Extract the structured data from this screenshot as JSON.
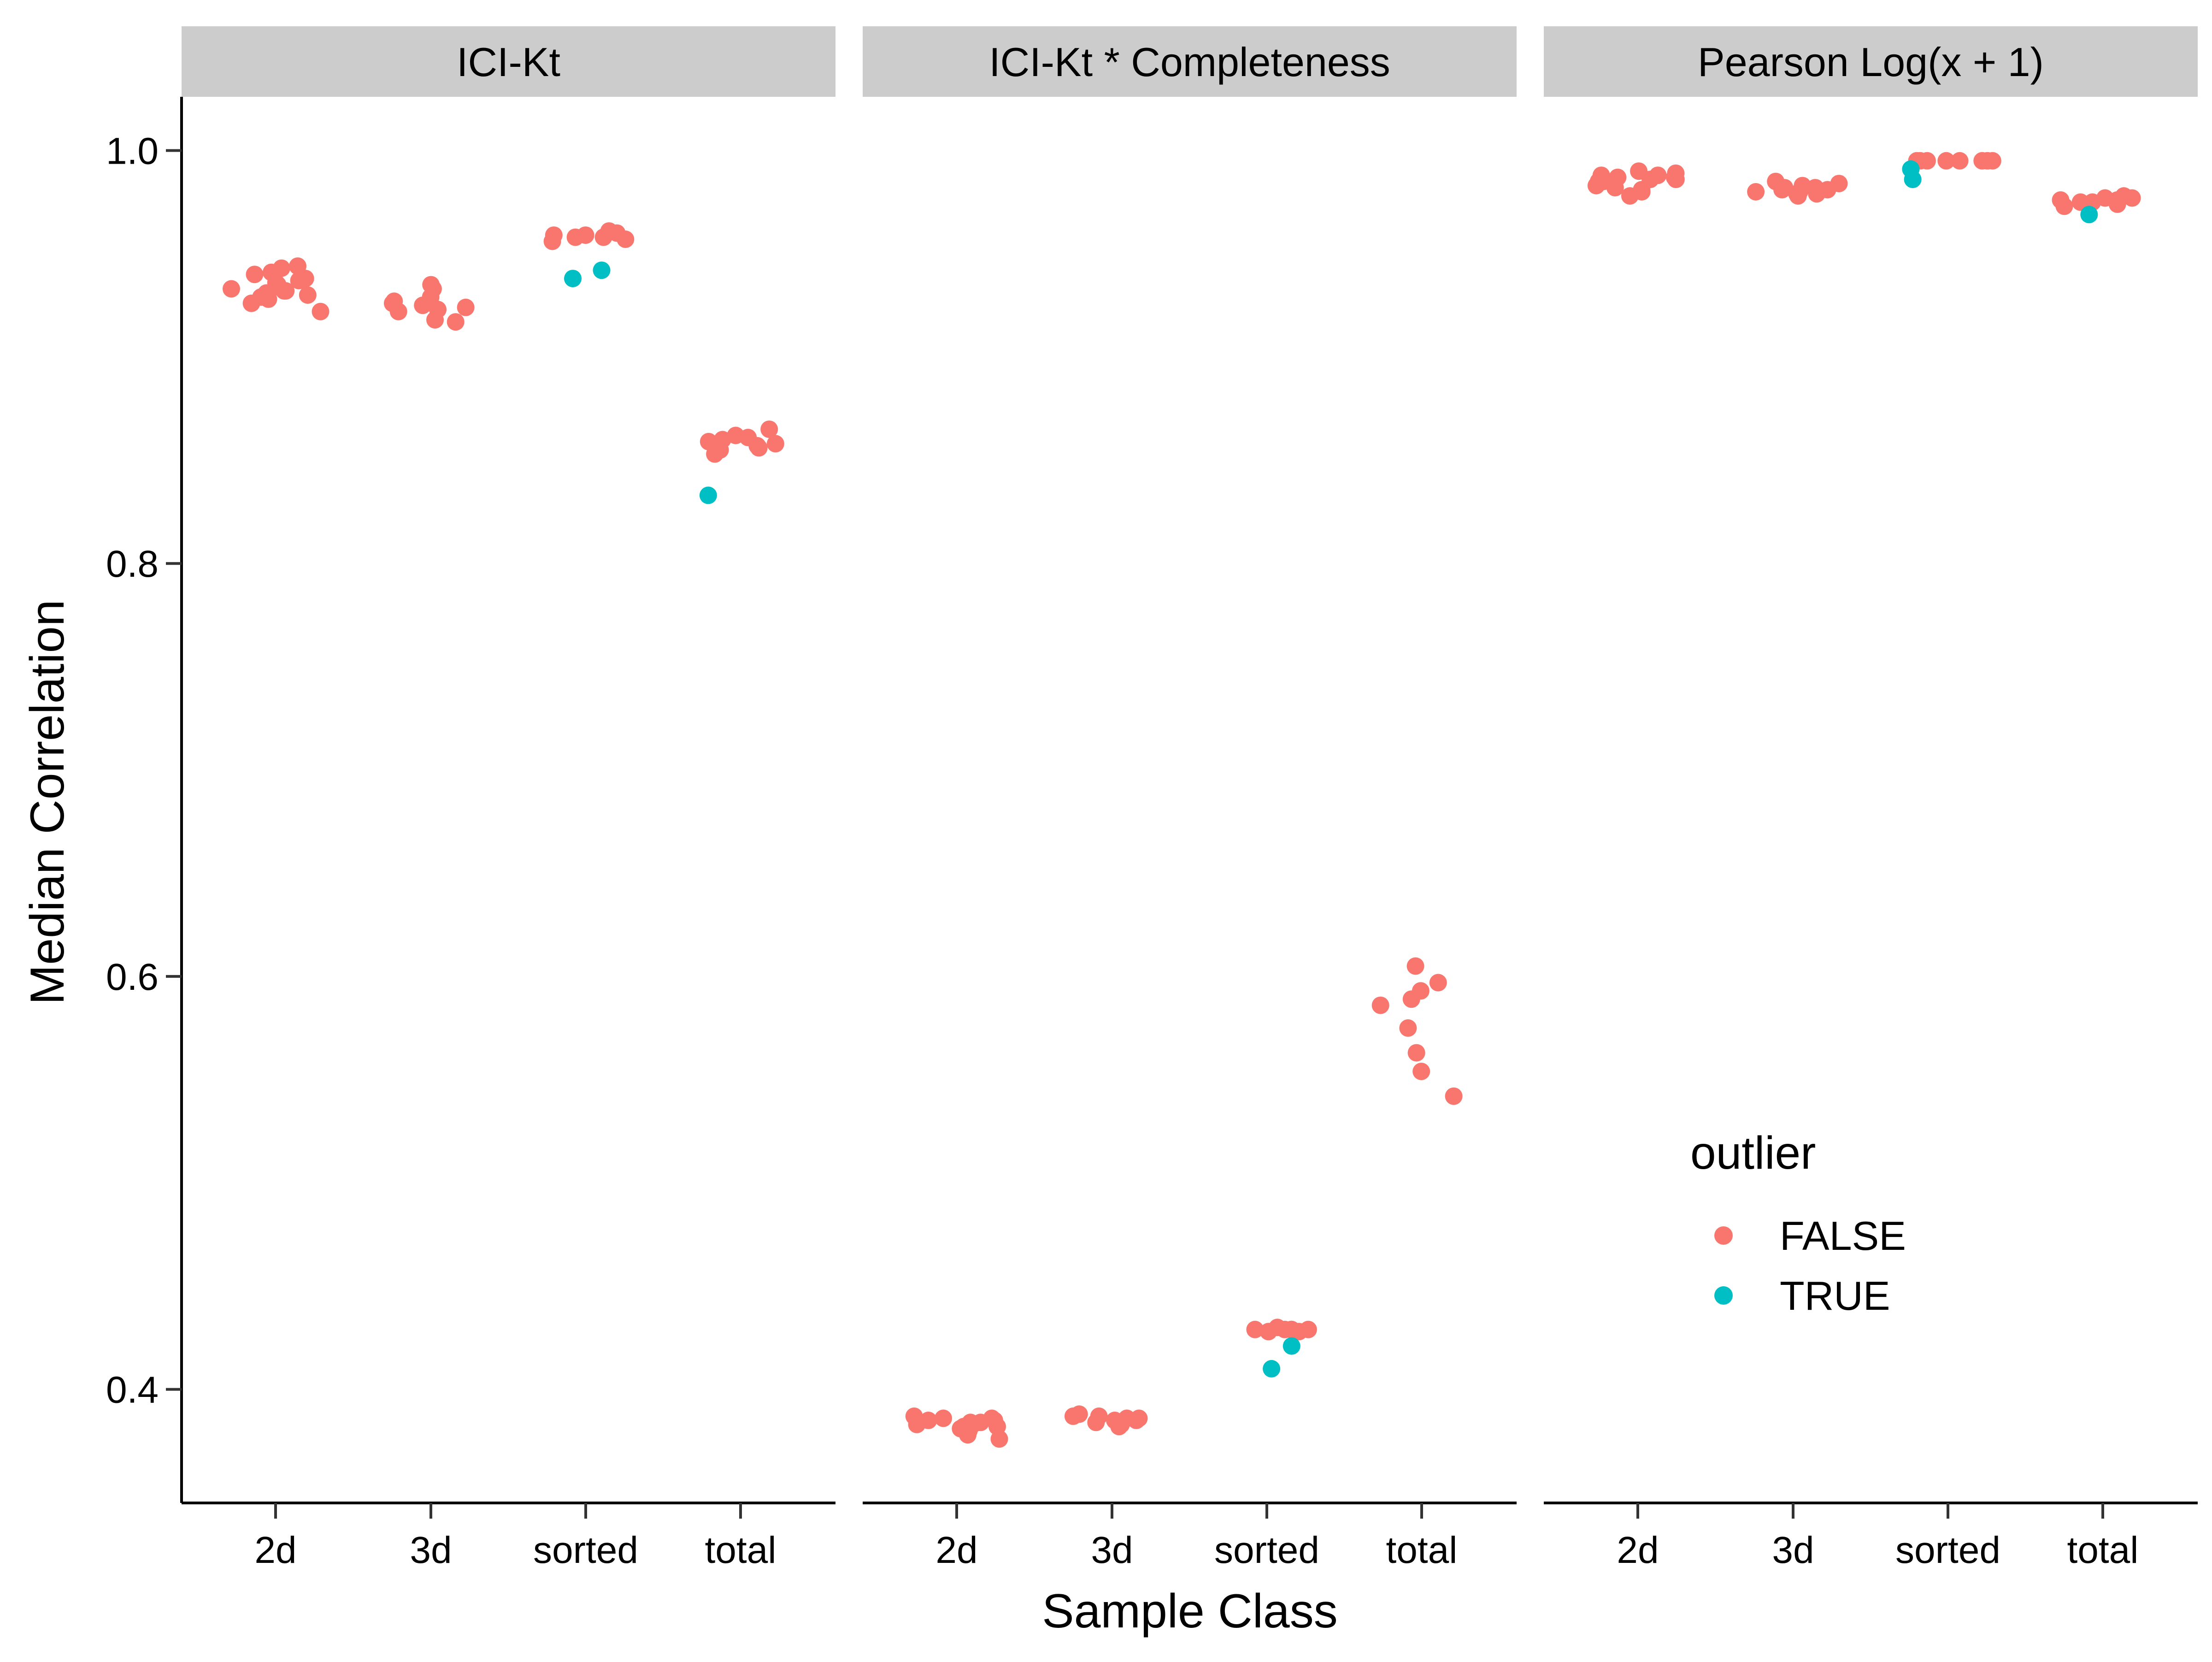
{
  "chart_data": {
    "type": "scatter",
    "xlabel": "Sample Class",
    "ylabel": "Median Correlation",
    "ylim": [
      0.345,
      1.026
    ],
    "yticks": [
      0.4,
      0.6,
      0.8,
      1.0
    ],
    "ytick_labels": [
      "0.4",
      "0.6",
      "0.8",
      "1.0"
    ],
    "categories": [
      "2d",
      "3d",
      "sorted",
      "total"
    ],
    "grid": false,
    "legend": {
      "title": "outlier",
      "position": "inside-bottom-right",
      "entries": [
        {
          "label": "FALSE",
          "color": "#F8766D"
        },
        {
          "label": "TRUE",
          "color": "#00BFC4"
        }
      ]
    },
    "facets": [
      {
        "title": "ICI-Kt",
        "points": [
          {
            "x": "2d",
            "y": 0.944,
            "outlier": false
          },
          {
            "x": "2d",
            "y": 0.943,
            "outlier": false
          },
          {
            "x": "2d",
            "y": 0.941,
            "outlier": false
          },
          {
            "x": "2d",
            "y": 0.94,
            "outlier": false
          },
          {
            "x": "2d",
            "y": 0.938,
            "outlier": false
          },
          {
            "x": "2d",
            "y": 0.937,
            "outlier": false
          },
          {
            "x": "2d",
            "y": 0.936,
            "outlier": false
          },
          {
            "x": "2d",
            "y": 0.935,
            "outlier": false
          },
          {
            "x": "2d",
            "y": 0.934,
            "outlier": false
          },
          {
            "x": "2d",
            "y": 0.933,
            "outlier": false
          },
          {
            "x": "2d",
            "y": 0.932,
            "outlier": false
          },
          {
            "x": "2d",
            "y": 0.932,
            "outlier": false
          },
          {
            "x": "2d",
            "y": 0.931,
            "outlier": false
          },
          {
            "x": "2d",
            "y": 0.93,
            "outlier": false
          },
          {
            "x": "2d",
            "y": 0.929,
            "outlier": false
          },
          {
            "x": "2d",
            "y": 0.928,
            "outlier": false
          },
          {
            "x": "2d",
            "y": 0.926,
            "outlier": false
          },
          {
            "x": "2d",
            "y": 0.922,
            "outlier": false
          },
          {
            "x": "3d",
            "y": 0.935,
            "outlier": false
          },
          {
            "x": "3d",
            "y": 0.933,
            "outlier": false
          },
          {
            "x": "3d",
            "y": 0.929,
            "outlier": false
          },
          {
            "x": "3d",
            "y": 0.927,
            "outlier": false
          },
          {
            "x": "3d",
            "y": 0.926,
            "outlier": false
          },
          {
            "x": "3d",
            "y": 0.925,
            "outlier": false
          },
          {
            "x": "3d",
            "y": 0.924,
            "outlier": false
          },
          {
            "x": "3d",
            "y": 0.923,
            "outlier": false
          },
          {
            "x": "3d",
            "y": 0.922,
            "outlier": false
          },
          {
            "x": "3d",
            "y": 0.918,
            "outlier": false
          },
          {
            "x": "3d",
            "y": 0.917,
            "outlier": false
          },
          {
            "x": "sorted",
            "y": 0.961,
            "outlier": false
          },
          {
            "x": "sorted",
            "y": 0.96,
            "outlier": false
          },
          {
            "x": "sorted",
            "y": 0.959,
            "outlier": false
          },
          {
            "x": "sorted",
            "y": 0.959,
            "outlier": false
          },
          {
            "x": "sorted",
            "y": 0.958,
            "outlier": false
          },
          {
            "x": "sorted",
            "y": 0.958,
            "outlier": false
          },
          {
            "x": "sorted",
            "y": 0.957,
            "outlier": false
          },
          {
            "x": "sorted",
            "y": 0.956,
            "outlier": false
          },
          {
            "x": "sorted",
            "y": 0.942,
            "outlier": true
          },
          {
            "x": "sorted",
            "y": 0.938,
            "outlier": true
          },
          {
            "x": "total",
            "y": 0.865,
            "outlier": false
          },
          {
            "x": "total",
            "y": 0.862,
            "outlier": false
          },
          {
            "x": "total",
            "y": 0.861,
            "outlier": false
          },
          {
            "x": "total",
            "y": 0.86,
            "outlier": false
          },
          {
            "x": "total",
            "y": 0.859,
            "outlier": false
          },
          {
            "x": "total",
            "y": 0.858,
            "outlier": false
          },
          {
            "x": "total",
            "y": 0.857,
            "outlier": false
          },
          {
            "x": "total",
            "y": 0.856,
            "outlier": false
          },
          {
            "x": "total",
            "y": 0.855,
            "outlier": false
          },
          {
            "x": "total",
            "y": 0.853,
            "outlier": false
          },
          {
            "x": "total",
            "y": 0.833,
            "outlier": true
          }
        ]
      },
      {
        "title": "ICI-Kt * Completeness",
        "points": [
          {
            "x": "2d",
            "y": 0.387,
            "outlier": false
          },
          {
            "x": "2d",
            "y": 0.386,
            "outlier": false
          },
          {
            "x": "2d",
            "y": 0.386,
            "outlier": false
          },
          {
            "x": "2d",
            "y": 0.385,
            "outlier": false
          },
          {
            "x": "2d",
            "y": 0.385,
            "outlier": false
          },
          {
            "x": "2d",
            "y": 0.384,
            "outlier": false
          },
          {
            "x": "2d",
            "y": 0.384,
            "outlier": false
          },
          {
            "x": "2d",
            "y": 0.383,
            "outlier": false
          },
          {
            "x": "2d",
            "y": 0.383,
            "outlier": false
          },
          {
            "x": "2d",
            "y": 0.382,
            "outlier": false
          },
          {
            "x": "2d",
            "y": 0.382,
            "outlier": false
          },
          {
            "x": "2d",
            "y": 0.381,
            "outlier": false
          },
          {
            "x": "2d",
            "y": 0.38,
            "outlier": false
          },
          {
            "x": "2d",
            "y": 0.378,
            "outlier": false
          },
          {
            "x": "2d",
            "y": 0.376,
            "outlier": false
          },
          {
            "x": "3d",
            "y": 0.388,
            "outlier": false
          },
          {
            "x": "3d",
            "y": 0.387,
            "outlier": false
          },
          {
            "x": "3d",
            "y": 0.387,
            "outlier": false
          },
          {
            "x": "3d",
            "y": 0.386,
            "outlier": false
          },
          {
            "x": "3d",
            "y": 0.386,
            "outlier": false
          },
          {
            "x": "3d",
            "y": 0.385,
            "outlier": false
          },
          {
            "x": "3d",
            "y": 0.385,
            "outlier": false
          },
          {
            "x": "3d",
            "y": 0.384,
            "outlier": false
          },
          {
            "x": "3d",
            "y": 0.384,
            "outlier": false
          },
          {
            "x": "3d",
            "y": 0.383,
            "outlier": false
          },
          {
            "x": "3d",
            "y": 0.382,
            "outlier": false
          },
          {
            "x": "sorted",
            "y": 0.429,
            "outlier": false
          },
          {
            "x": "sorted",
            "y": 0.429,
            "outlier": false
          },
          {
            "x": "sorted",
            "y": 0.429,
            "outlier": false
          },
          {
            "x": "sorted",
            "y": 0.43,
            "outlier": false
          },
          {
            "x": "sorted",
            "y": 0.429,
            "outlier": false
          },
          {
            "x": "sorted",
            "y": 0.428,
            "outlier": false
          },
          {
            "x": "sorted",
            "y": 0.428,
            "outlier": false
          },
          {
            "x": "sorted",
            "y": 0.428,
            "outlier": false
          },
          {
            "x": "sorted",
            "y": 0.429,
            "outlier": false
          },
          {
            "x": "sorted",
            "y": 0.421,
            "outlier": true
          },
          {
            "x": "sorted",
            "y": 0.41,
            "outlier": true
          },
          {
            "x": "total",
            "y": 0.605,
            "outlier": false
          },
          {
            "x": "total",
            "y": 0.597,
            "outlier": false
          },
          {
            "x": "total",
            "y": 0.593,
            "outlier": false
          },
          {
            "x": "total",
            "y": 0.589,
            "outlier": false
          },
          {
            "x": "total",
            "y": 0.586,
            "outlier": false
          },
          {
            "x": "total",
            "y": 0.575,
            "outlier": false
          },
          {
            "x": "total",
            "y": 0.563,
            "outlier": false
          },
          {
            "x": "total",
            "y": 0.554,
            "outlier": false
          },
          {
            "x": "total",
            "y": 0.542,
            "outlier": false
          }
        ]
      },
      {
        "title": "Pearson Log(x + 1)",
        "points": [
          {
            "x": "2d",
            "y": 0.99,
            "outlier": false
          },
          {
            "x": "2d",
            "y": 0.989,
            "outlier": false
          },
          {
            "x": "2d",
            "y": 0.988,
            "outlier": false
          },
          {
            "x": "2d",
            "y": 0.988,
            "outlier": false
          },
          {
            "x": "2d",
            "y": 0.987,
            "outlier": false
          },
          {
            "x": "2d",
            "y": 0.987,
            "outlier": false
          },
          {
            "x": "2d",
            "y": 0.986,
            "outlier": false
          },
          {
            "x": "2d",
            "y": 0.986,
            "outlier": false
          },
          {
            "x": "2d",
            "y": 0.985,
            "outlier": false
          },
          {
            "x": "2d",
            "y": 0.985,
            "outlier": false
          },
          {
            "x": "2d",
            "y": 0.984,
            "outlier": false
          },
          {
            "x": "2d",
            "y": 0.983,
            "outlier": false
          },
          {
            "x": "2d",
            "y": 0.982,
            "outlier": false
          },
          {
            "x": "2d",
            "y": 0.981,
            "outlier": false
          },
          {
            "x": "2d",
            "y": 0.98,
            "outlier": false
          },
          {
            "x": "2d",
            "y": 0.978,
            "outlier": false
          },
          {
            "x": "3d",
            "y": 0.985,
            "outlier": false
          },
          {
            "x": "3d",
            "y": 0.984,
            "outlier": false
          },
          {
            "x": "3d",
            "y": 0.983,
            "outlier": false
          },
          {
            "x": "3d",
            "y": 0.982,
            "outlier": false
          },
          {
            "x": "3d",
            "y": 0.982,
            "outlier": false
          },
          {
            "x": "3d",
            "y": 0.981,
            "outlier": false
          },
          {
            "x": "3d",
            "y": 0.981,
            "outlier": false
          },
          {
            "x": "3d",
            "y": 0.98,
            "outlier": false
          },
          {
            "x": "3d",
            "y": 0.98,
            "outlier": false
          },
          {
            "x": "3d",
            "y": 0.979,
            "outlier": false
          },
          {
            "x": "3d",
            "y": 0.979,
            "outlier": false
          },
          {
            "x": "3d",
            "y": 0.978,
            "outlier": false
          },
          {
            "x": "sorted",
            "y": 0.995,
            "outlier": false
          },
          {
            "x": "sorted",
            "y": 0.995,
            "outlier": false
          },
          {
            "x": "sorted",
            "y": 0.995,
            "outlier": false
          },
          {
            "x": "sorted",
            "y": 0.995,
            "outlier": false
          },
          {
            "x": "sorted",
            "y": 0.995,
            "outlier": false
          },
          {
            "x": "sorted",
            "y": 0.995,
            "outlier": false
          },
          {
            "x": "sorted",
            "y": 0.995,
            "outlier": false
          },
          {
            "x": "sorted",
            "y": 0.995,
            "outlier": false
          },
          {
            "x": "sorted",
            "y": 0.991,
            "outlier": true
          },
          {
            "x": "sorted",
            "y": 0.986,
            "outlier": true
          },
          {
            "x": "total",
            "y": 0.978,
            "outlier": false
          },
          {
            "x": "total",
            "y": 0.977,
            "outlier": false
          },
          {
            "x": "total",
            "y": 0.977,
            "outlier": false
          },
          {
            "x": "total",
            "y": 0.976,
            "outlier": false
          },
          {
            "x": "total",
            "y": 0.976,
            "outlier": false
          },
          {
            "x": "total",
            "y": 0.975,
            "outlier": false
          },
          {
            "x": "total",
            "y": 0.975,
            "outlier": false
          },
          {
            "x": "total",
            "y": 0.974,
            "outlier": false
          },
          {
            "x": "total",
            "y": 0.973,
            "outlier": false
          },
          {
            "x": "total",
            "y": 0.969,
            "outlier": true
          }
        ]
      }
    ]
  }
}
